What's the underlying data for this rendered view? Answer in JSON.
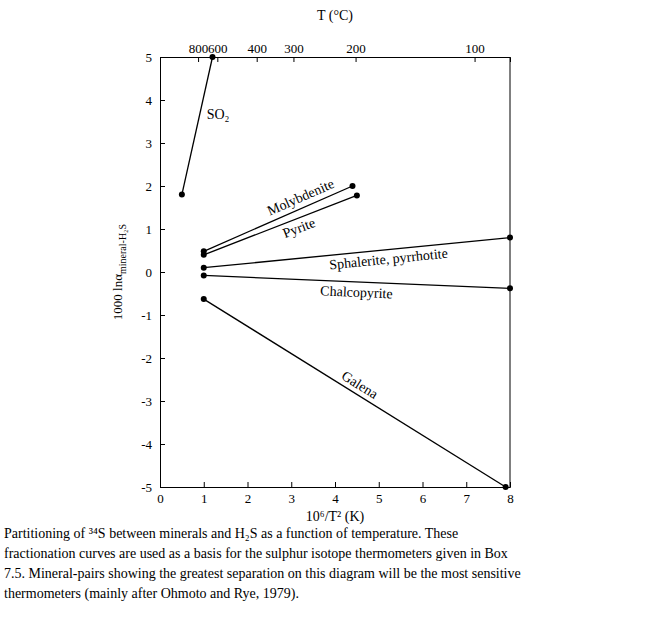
{
  "chart_data": {
    "type": "line",
    "xlabel": "10⁶/T² (K)",
    "ylabel": "1000 lnα",
    "ylabel_subscript": "mineral-H₂S",
    "x2label": "T (°C)",
    "caption": [
      "Partitioning of ³⁴S between minerals and H₂S as a function of temperature. These",
      "fractionation curves are used as a basis for the sulphur isotope thermometers given in Box",
      "7.5. Mineral-pairs showing the greatest separation on this diagram will be the most sensitive",
      "thermometers (mainly after Ohmoto and Rye, 1979)."
    ],
    "xlim": [
      0,
      8
    ],
    "xticks": [
      0,
      1,
      2,
      3,
      4,
      5,
      6,
      7,
      8
    ],
    "ylim": [
      -5,
      5
    ],
    "yticks": [
      -5,
      -4,
      -3,
      -2,
      -1,
      0,
      1,
      2,
      3,
      4,
      5
    ],
    "x2lim": [
      0,
      8
    ],
    "x2ticks": [
      {
        "value": 0.87,
        "label": "800"
      },
      {
        "value": 1.31,
        "label": "600"
      },
      {
        "value": 2.21,
        "label": "400"
      },
      {
        "value": 3.05,
        "label": "300"
      },
      {
        "value": 4.47,
        "label": "200"
      },
      {
        "value": 7.19,
        "label": "100"
      }
    ],
    "color": "#000000",
    "marker": "circle",
    "series": [
      {
        "name": "SO₂",
        "x": [
          0.5,
          1.2
        ],
        "values": [
          1.8,
          5.0
        ]
      },
      {
        "name": "Molybdenite",
        "x": [
          1.0,
          4.4
        ],
        "values": [
          0.48,
          2.0
        ]
      },
      {
        "name": "Pyrite",
        "x": [
          1.0,
          4.5
        ],
        "values": [
          0.4,
          1.78
        ]
      },
      {
        "name": "Sphalerite, pyrrhotite",
        "x": [
          1.0,
          8.0
        ],
        "values": [
          0.1,
          0.8
        ]
      },
      {
        "name": "Chalcopyrite",
        "x": [
          1.0,
          8.0
        ],
        "values": [
          -0.08,
          -0.38
        ]
      },
      {
        "name": "Galena",
        "x": [
          1.0,
          7.9
        ],
        "values": [
          -0.63,
          -5.0
        ]
      }
    ]
  }
}
